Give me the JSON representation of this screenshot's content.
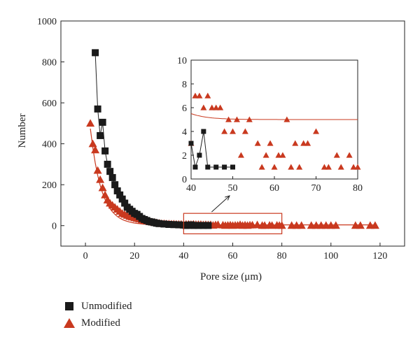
{
  "chart_data": {
    "type": "scatter",
    "xlabel": "Pore size (μm)",
    "ylabel": "Number",
    "xlim": [
      -10,
      130
    ],
    "ylim": [
      -100,
      1000
    ],
    "xticks": [
      0,
      20,
      40,
      60,
      80,
      100,
      120
    ],
    "yticks": [
      0,
      200,
      400,
      600,
      800,
      1000
    ],
    "legend_position": "bottom-left",
    "series": [
      {
        "name": "Unmodified",
        "marker": "square",
        "color": "#1a1a1a",
        "connected": true,
        "x": [
          4,
          5,
          6,
          7,
          8,
          9,
          10,
          11,
          12,
          13,
          14,
          15,
          16,
          17,
          18,
          19,
          20,
          21,
          22,
          23,
          24,
          25,
          26,
          27,
          28,
          29,
          30,
          32,
          34,
          36,
          38,
          40,
          41,
          42,
          43,
          44,
          46,
          48,
          50
        ],
        "y": [
          845,
          570,
          440,
          505,
          365,
          300,
          265,
          235,
          200,
          170,
          150,
          130,
          110,
          90,
          80,
          70,
          60,
          55,
          45,
          35,
          30,
          25,
          20,
          18,
          15,
          12,
          10,
          8,
          6,
          5,
          4,
          3,
          1,
          2,
          4,
          1,
          1,
          1,
          1
        ]
      },
      {
        "name": "Modified",
        "marker": "triangle",
        "color": "#c9391f",
        "fit_curve": true,
        "x": [
          2,
          3,
          4,
          5,
          6,
          7,
          8,
          9,
          10,
          11,
          12,
          13,
          14,
          15,
          16,
          17,
          18,
          19,
          20,
          21,
          22,
          23,
          24,
          25,
          26,
          27,
          28,
          29,
          30,
          31,
          32,
          33,
          34,
          35,
          36,
          37,
          38,
          39,
          40,
          41,
          42,
          43,
          44,
          45,
          46,
          47,
          48,
          49,
          50,
          51,
          52,
          53,
          54,
          56,
          57,
          58,
          59,
          60,
          61,
          62,
          63,
          64,
          65,
          66,
          67,
          68,
          70,
          72,
          73,
          75,
          76,
          78,
          79,
          80,
          84,
          86,
          88,
          92,
          94,
          96,
          98,
          100,
          102,
          110,
          112,
          116,
          118
        ],
        "y": [
          500,
          400,
          370,
          270,
          225,
          185,
          150,
          125,
          110,
          100,
          90,
          80,
          70,
          60,
          55,
          50,
          45,
          42,
          38,
          35,
          32,
          28,
          25,
          22,
          20,
          18,
          16,
          14,
          12,
          10,
          10,
          9,
          9,
          8,
          8,
          7,
          7,
          7,
          3,
          7,
          7,
          6,
          7,
          6,
          6,
          6,
          4,
          5,
          4,
          5,
          2,
          4,
          5,
          3,
          1,
          2,
          3,
          1,
          2,
          2,
          5,
          1,
          3,
          1,
          3,
          3,
          4,
          1,
          1,
          2,
          1,
          2,
          1,
          1,
          1,
          1,
          1,
          1,
          1,
          1,
          1,
          1,
          1,
          1,
          1,
          1,
          1
        ]
      }
    ],
    "inset": {
      "xlim": [
        40,
        80
      ],
      "ylim": [
        0,
        10
      ],
      "xticks": [
        40,
        50,
        60,
        70,
        80
      ],
      "yticks": [
        0,
        2,
        4,
        6,
        8,
        10
      ],
      "zoom_box_x": [
        40,
        80
      ],
      "zoom_box_y": [
        -40,
        60
      ]
    }
  }
}
